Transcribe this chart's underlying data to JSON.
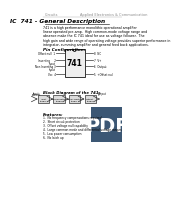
{
  "title": "IC  741 - General Description",
  "header_left": "Circuits",
  "header_right": "Applied Electronics & Communication",
  "body_text": [
    "741 is a high performance monolithic operational amplifier",
    "linear operated pre-amp.  High common-mode voltage range and",
    "absence make the IC 741 ideal for use as voltage follower.  The",
    "high gain and wide range of operating voltage provides superior performance in",
    "integrator, summing amplifier and general feed back applications."
  ],
  "pin_config_label": "Pin Configuration:",
  "ic_label": "741",
  "pin_labels_left": [
    "Offset null  1",
    "Inverting     2\nInput",
    "Non Inverting 3\nInput",
    "Vcc  4"
  ],
  "pin_labels_right": [
    "NC  8",
    "V+   7",
    "Output  6",
    "+Offset null  5"
  ],
  "block_diagram_label": "Block Diagram of the 741:",
  "block_stages": [
    "Input\nStage",
    "compensation\nStage",
    "level shifting\nStage",
    "Output\nStage"
  ],
  "block_arrows": [
    "Input\nCurrent",
    "",
    "",
    "Output\nV"
  ],
  "features_label": "Features:",
  "features": [
    "1.  No frequency compensations required",
    "2.  Short circuit protection",
    "3.  Offset voltage null capability",
    "4.  Large common mode and differential voltage ranges",
    "5.  Low power consumption",
    "6.  No latch up"
  ],
  "bg_color": "#ffffff",
  "text_color": "#000000",
  "title_color": "#000000",
  "header_color": "#888888",
  "box_color": "#333333",
  "pdf_watermark_color": "#1a3a5c"
}
